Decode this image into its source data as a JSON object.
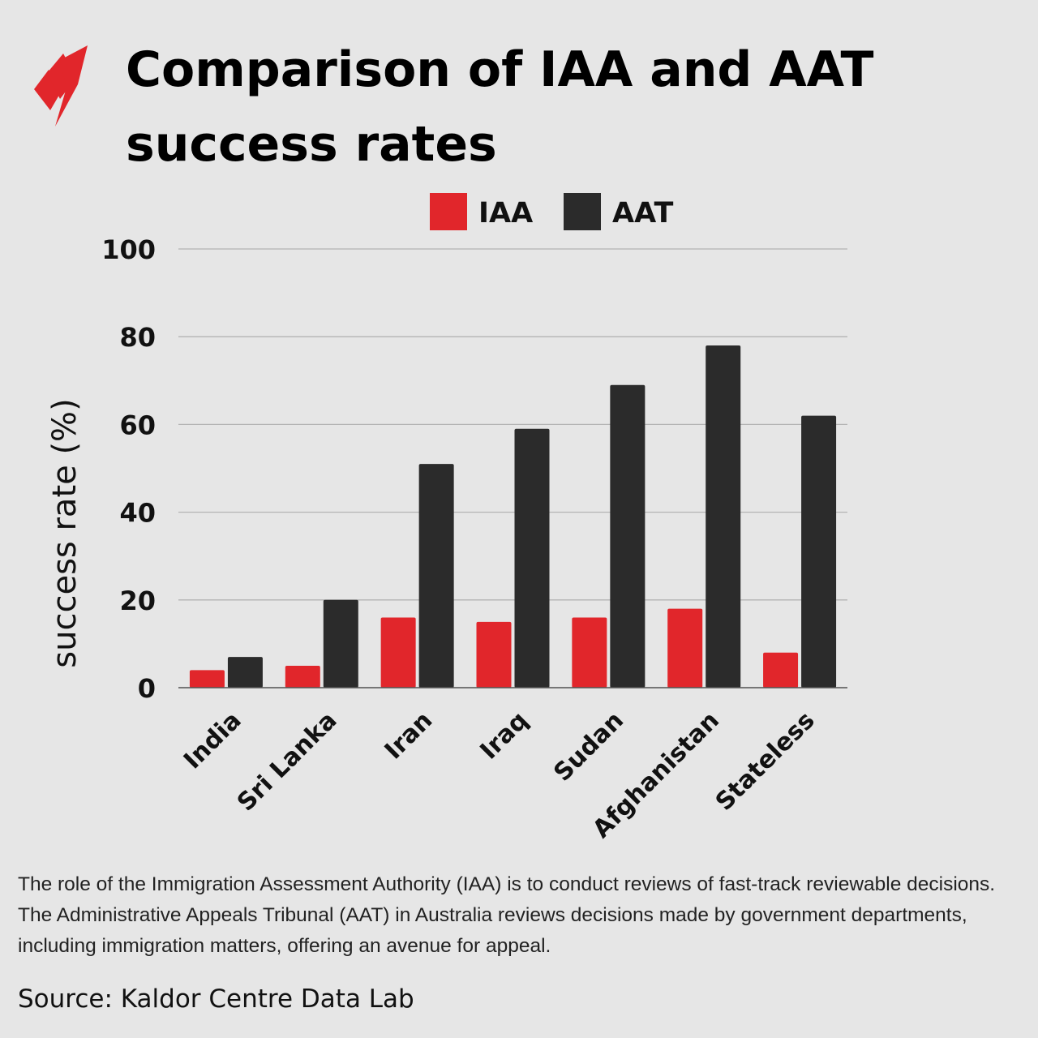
{
  "title": "Comparison of IAA and AAT success rates",
  "colors": {
    "iaa": "#e1262b",
    "aat": "#2b2b2b",
    "grid": "#b4b4b4",
    "brand": "#e1262b"
  },
  "chart_data": {
    "type": "bar",
    "title": "Comparison of IAA and AAT success rates",
    "xlabel": "",
    "ylabel": "success rate (%)",
    "ylim": [
      0,
      100
    ],
    "yticks": [
      0,
      20,
      40,
      60,
      80,
      100
    ],
    "grid": true,
    "legend_position": "top-center",
    "categories": [
      "India",
      "Sri Lanka",
      "Iran",
      "Iraq",
      "Sudan",
      "Afghanistan",
      "Stateless"
    ],
    "series": [
      {
        "name": "IAA",
        "values": [
          4,
          5,
          16,
          15,
          16,
          18,
          8
        ]
      },
      {
        "name": "AAT",
        "values": [
          7,
          20,
          51,
          59,
          69,
          78,
          62
        ]
      }
    ]
  },
  "caption": "The role of the Immigration Assessment Authority (IAA) is to conduct reviews of fast-track reviewable decisions. The Administrative Appeals Tribunal (AAT) in Australia reviews decisions made by government departments, including immigration matters, offering an avenue for appeal.",
  "source": "Source: Kaldor Centre Data Lab"
}
